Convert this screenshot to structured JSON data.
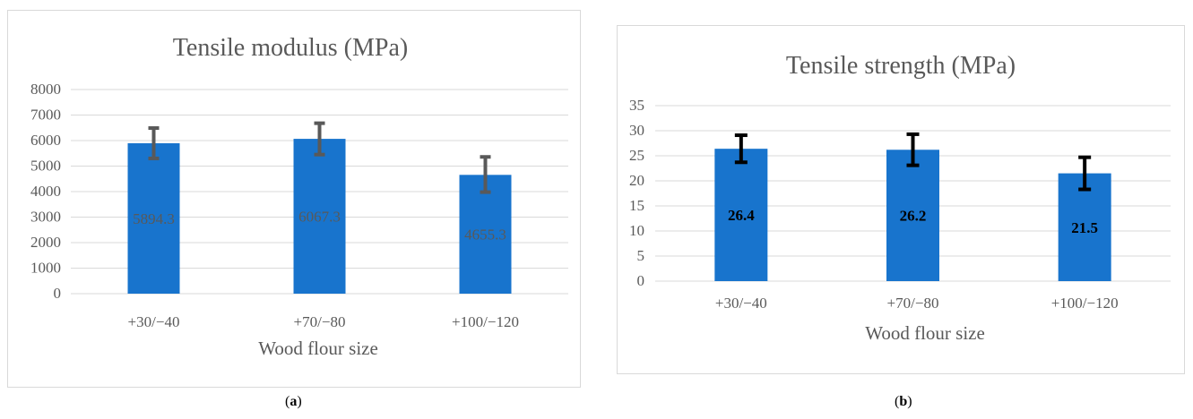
{
  "chart_data": [
    {
      "type": "bar",
      "title": "Tensile modulus (MPa)",
      "xlabel": "Wood flour size",
      "ylabel": "",
      "categories": [
        "+30/−40",
        "+70/−80",
        "+100/−120"
      ],
      "values": [
        5894.3,
        6067.3,
        4655.3
      ],
      "data_labels": [
        "5894.3",
        "6067.3",
        "4655.3"
      ],
      "error_low": [
        5300,
        5450,
        3980
      ],
      "error_high": [
        6490,
        6680,
        5360
      ],
      "ylim": [
        0,
        8000
      ],
      "yticks": [
        0,
        1000,
        2000,
        3000,
        4000,
        5000,
        6000,
        7000,
        8000
      ],
      "grid": true,
      "legend": "none",
      "bar_color": "#1874cd",
      "error_color": "#595959",
      "label_color": "#595959",
      "caption_prefix": "(",
      "caption_letter": "a",
      "caption_suffix": ")"
    },
    {
      "type": "bar",
      "title": "Tensile strength (MPa)",
      "xlabel": "Wood flour size",
      "ylabel": "",
      "categories": [
        "+30/−40",
        "+70/−80",
        "+100/−120"
      ],
      "values": [
        26.4,
        26.2,
        21.5
      ],
      "data_labels": [
        "26.4",
        "26.2",
        "21.5"
      ],
      "error_low": [
        23.7,
        23.1,
        18.3
      ],
      "error_high": [
        29.1,
        29.3,
        24.7
      ],
      "ylim": [
        0,
        35
      ],
      "yticks": [
        0,
        5,
        10,
        15,
        20,
        25,
        30,
        35
      ],
      "grid": true,
      "legend": "none",
      "bar_color": "#1874cd",
      "error_color": "#000000",
      "label_color": "#000000",
      "caption_prefix": "(",
      "caption_letter": "b",
      "caption_suffix": ")"
    }
  ]
}
